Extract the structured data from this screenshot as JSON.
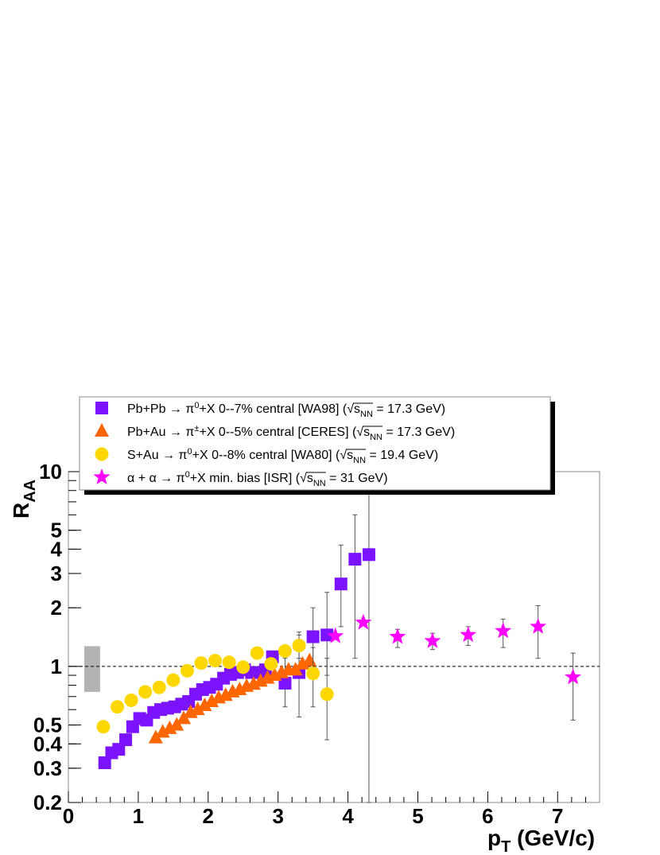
{
  "chart_data": {
    "type": "scatter",
    "title": "",
    "xlabel": "p_T (GeV/c)",
    "ylabel": "R_AA",
    "xlim": [
      0,
      7.6
    ],
    "ylim": [
      0.2,
      10
    ],
    "yscale": "log",
    "reference_line": 1,
    "normalization_box": {
      "x": 0.34,
      "ylow": 0.74,
      "yhigh": 1.27,
      "color": "#b3b3b3"
    },
    "x_ticks": [
      0,
      1,
      2,
      3,
      4,
      5,
      6,
      7
    ],
    "x_tick_labels": [
      "0",
      "1",
      "2",
      "3",
      "4",
      "5",
      "6",
      "7"
    ],
    "y_ticks": [
      0.2,
      0.3,
      0.4,
      0.5,
      1,
      2,
      3,
      4,
      5,
      10
    ],
    "y_tick_labels": [
      "0.2",
      "0.3",
      "0.4",
      "0.5",
      "1",
      "2",
      "3",
      "4",
      "5",
      "10"
    ],
    "legend_placement": "top-left",
    "series": [
      {
        "name": "Pb+Pb → π0+X 0--7% central [WA98]",
        "color": "#7b13ff",
        "marker": "square",
        "points": [
          {
            "x": 0.52,
            "y": 0.32
          },
          {
            "x": 0.62,
            "y": 0.36
          },
          {
            "x": 0.72,
            "y": 0.375
          },
          {
            "x": 0.82,
            "y": 0.42
          },
          {
            "x": 0.92,
            "y": 0.49
          },
          {
            "x": 1.02,
            "y": 0.54
          },
          {
            "x": 1.12,
            "y": 0.53
          },
          {
            "x": 1.22,
            "y": 0.58
          },
          {
            "x": 1.32,
            "y": 0.6
          },
          {
            "x": 1.42,
            "y": 0.61
          },
          {
            "x": 1.52,
            "y": 0.62
          },
          {
            "x": 1.62,
            "y": 0.64
          },
          {
            "x": 1.72,
            "y": 0.66
          },
          {
            "x": 1.82,
            "y": 0.72
          },
          {
            "x": 1.92,
            "y": 0.76
          },
          {
            "x": 2.02,
            "y": 0.78
          },
          {
            "x": 2.12,
            "y": 0.81
          },
          {
            "x": 2.22,
            "y": 0.87
          },
          {
            "x": 2.32,
            "y": 0.91
          },
          {
            "x": 2.42,
            "y": 0.93
          },
          {
            "x": 2.52,
            "y": 0.96
          },
          {
            "x": 2.62,
            "y": 0.93
          },
          {
            "x": 2.72,
            "y": 0.93
          },
          {
            "x": 2.82,
            "y": 0.96
          },
          {
            "x": 2.92,
            "y": 1.12
          },
          {
            "x": 3.1,
            "y": 0.82,
            "ylow": 0.62,
            "yhigh": 1.1
          },
          {
            "x": 3.3,
            "y": 0.93,
            "ylow": 0.55,
            "yhigh": 1.5
          },
          {
            "x": 3.5,
            "y": 1.42,
            "ylow": 0.9,
            "yhigh": 2.0
          },
          {
            "x": 3.7,
            "y": 1.45,
            "ylow": 0.9,
            "yhigh": 2.4
          },
          {
            "x": 3.9,
            "y": 2.65,
            "ylow": 1.6,
            "yhigh": 4.2
          },
          {
            "x": 4.1,
            "y": 3.55,
            "ylow": 1.1,
            "yhigh": 6.0
          },
          {
            "x": 4.3,
            "y": 3.75,
            "ylow": 0.2,
            "yhigh": 7.8
          }
        ]
      },
      {
        "name": "Pb+Au → π±+X 0--5% central [CERES]",
        "color": "#ff6600",
        "marker": "triangle",
        "points": [
          {
            "x": 1.25,
            "y": 0.43
          },
          {
            "x": 1.35,
            "y": 0.46
          },
          {
            "x": 1.45,
            "y": 0.48
          },
          {
            "x": 1.55,
            "y": 0.5
          },
          {
            "x": 1.65,
            "y": 0.54
          },
          {
            "x": 1.75,
            "y": 0.58
          },
          {
            "x": 1.85,
            "y": 0.6
          },
          {
            "x": 1.95,
            "y": 0.63
          },
          {
            "x": 2.05,
            "y": 0.66
          },
          {
            "x": 2.15,
            "y": 0.69
          },
          {
            "x": 2.25,
            "y": 0.71
          },
          {
            "x": 2.35,
            "y": 0.74
          },
          {
            "x": 2.45,
            "y": 0.76
          },
          {
            "x": 2.55,
            "y": 0.79
          },
          {
            "x": 2.65,
            "y": 0.81
          },
          {
            "x": 2.75,
            "y": 0.84
          },
          {
            "x": 2.85,
            "y": 0.87
          },
          {
            "x": 2.95,
            "y": 0.9
          },
          {
            "x": 3.05,
            "y": 0.93
          },
          {
            "x": 3.15,
            "y": 0.96
          },
          {
            "x": 3.25,
            "y": 0.96
          },
          {
            "x": 3.35,
            "y": 1.03
          },
          {
            "x": 3.45,
            "y": 1.07
          }
        ]
      },
      {
        "name": "S+Au → π0+X 0--8% central [WA80]",
        "color": "#ffd700",
        "marker": "circle",
        "points": [
          {
            "x": 0.5,
            "y": 0.49
          },
          {
            "x": 0.7,
            "y": 0.62
          },
          {
            "x": 0.9,
            "y": 0.67
          },
          {
            "x": 1.1,
            "y": 0.74
          },
          {
            "x": 1.3,
            "y": 0.78
          },
          {
            "x": 1.5,
            "y": 0.85
          },
          {
            "x": 1.7,
            "y": 0.95
          },
          {
            "x": 1.9,
            "y": 1.04
          },
          {
            "x": 2.1,
            "y": 1.07
          },
          {
            "x": 2.3,
            "y": 1.05
          },
          {
            "x": 2.5,
            "y": 0.99
          },
          {
            "x": 2.7,
            "y": 1.17
          },
          {
            "x": 2.9,
            "y": 1.03
          },
          {
            "x": 3.1,
            "y": 1.2
          },
          {
            "x": 3.3,
            "y": 1.28,
            "ylow": 1.1,
            "yhigh": 1.45
          },
          {
            "x": 3.5,
            "y": 0.92,
            "ylow": 0.62,
            "yhigh": 1.25
          },
          {
            "x": 3.7,
            "y": 0.72,
            "ylow": 0.42,
            "yhigh": 1.1
          }
        ]
      },
      {
        "name": "α + α → π0+X min. bias [ISR]",
        "color": "#ff00ff",
        "marker": "star",
        "points": [
          {
            "x": 3.82,
            "y": 1.43
          },
          {
            "x": 4.22,
            "y": 1.68
          },
          {
            "x": 4.71,
            "y": 1.42,
            "ylow": 1.25,
            "yhigh": 1.55
          },
          {
            "x": 5.21,
            "y": 1.35,
            "ylow": 1.22,
            "yhigh": 1.48
          },
          {
            "x": 5.72,
            "y": 1.45,
            "ylow": 1.28,
            "yhigh": 1.6
          },
          {
            "x": 6.22,
            "y": 1.52,
            "ylow": 1.25,
            "yhigh": 1.75
          },
          {
            "x": 6.72,
            "y": 1.6,
            "ylow": 1.1,
            "yhigh": 2.05
          },
          {
            "x": 7.22,
            "y": 0.88,
            "ylow": 0.53,
            "yhigh": 1.17
          }
        ]
      }
    ]
  },
  "legend": {
    "items": [
      {
        "marker": "square",
        "color": "#7b13ff",
        "prefix": "Pb+Pb → π",
        "sup": "0",
        "mid": "+X  0--7%  central [WA98] (",
        "energy": " = 17.3 GeV)"
      },
      {
        "marker": "triangle",
        "color": "#ff6600",
        "prefix": "Pb+Au → π",
        "sup": "±",
        "mid": "+X  0--5% central [CERES] (",
        "energy": " = 17.3 GeV)"
      },
      {
        "marker": "circle",
        "color": "#ffd700",
        "prefix": "S+Au → π",
        "sup": "0",
        "mid": "+X 0--8%  central [WA80] (",
        "energy": " = 19.4 GeV)"
      },
      {
        "marker": "star",
        "color": "#ff00ff",
        "prefix": "α + α → π",
        "sup": "0",
        "mid": "+X min. bias [ISR] (",
        "energy": " = 31 GeV)"
      }
    ],
    "energy_symbol": "√",
    "energy_s": "s",
    "energy_sub": "NN"
  },
  "axis": {
    "y_title": "R",
    "y_title_sub": "AA",
    "x_title": "p",
    "x_title_sub": "T",
    "x_title_rest": " (GeV/c)"
  }
}
